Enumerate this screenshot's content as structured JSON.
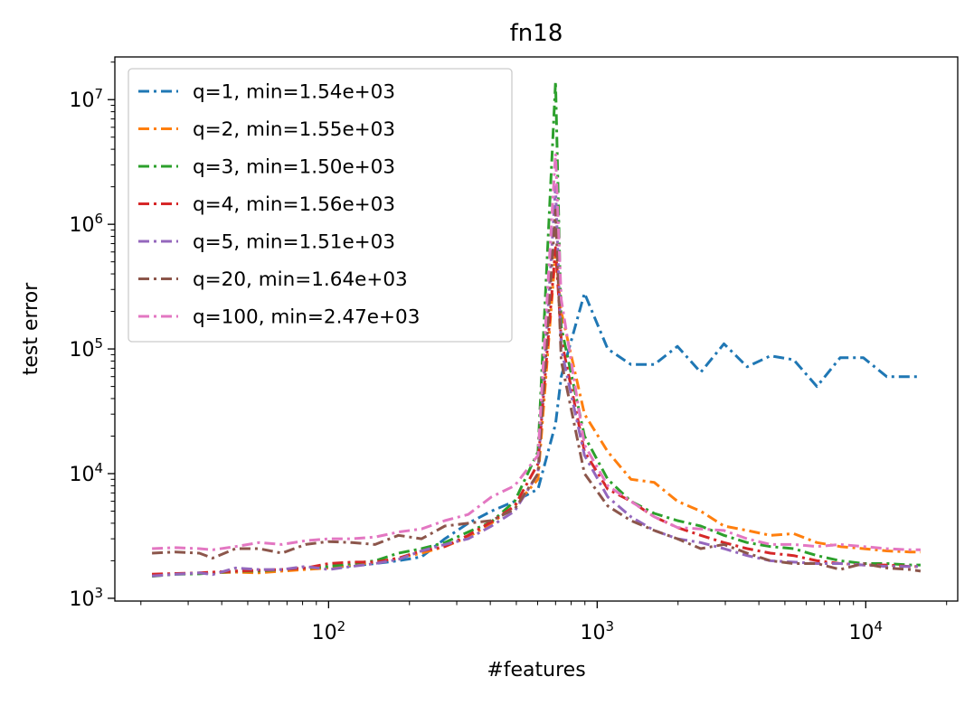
{
  "chart_data": {
    "type": "line",
    "title": "fn18",
    "xlabel": "#features",
    "ylabel": "test error",
    "xscale": "log",
    "yscale": "log",
    "xlim": [
      16,
      22000
    ],
    "ylim": [
      950,
      22000000
    ],
    "grid": false,
    "legend_position": "top-left",
    "x_ticks": [
      {
        "value": 100,
        "base": "10",
        "exp": "2"
      },
      {
        "value": 1000,
        "base": "10",
        "exp": "3"
      },
      {
        "value": 10000,
        "base": "10",
        "exp": "4"
      }
    ],
    "y_ticks": [
      {
        "value": 1000,
        "base": "10",
        "exp": "3"
      },
      {
        "value": 10000,
        "base": "10",
        "exp": "4"
      },
      {
        "value": 100000,
        "base": "10",
        "exp": "5"
      },
      {
        "value": 1000000,
        "base": "10",
        "exp": "6"
      },
      {
        "value": 10000000,
        "base": "10",
        "exp": "7"
      }
    ],
    "x": [
      22,
      27,
      33,
      37,
      45,
      55,
      67,
      82,
      100,
      122,
      149,
      182,
      222,
      271,
      331,
      404,
      493,
      602,
      700,
      735,
      897,
      1095,
      1336,
      1631,
      1990,
      2429,
      2965,
      3619,
      4417,
      5391,
      6580,
      8032,
      9803,
      11966,
      14605,
      16000
    ],
    "series": [
      {
        "name": "q=1, min=1.54e+03",
        "color": "#1f77b4",
        "values": [
          1540,
          1560,
          1580,
          1600,
          1620,
          1650,
          1680,
          1720,
          1760,
          1820,
          1900,
          2000,
          2150,
          3000,
          4000,
          5000,
          6000,
          7500,
          25000,
          60000,
          280000,
          100000,
          75000,
          75000,
          105000,
          65000,
          110000,
          72000,
          88000,
          82000,
          50000,
          85000,
          85000,
          60000,
          60000,
          60000
        ]
      },
      {
        "name": "q=2, min=1.55e+03",
        "color": "#ff7f0e",
        "values": [
          1550,
          1570,
          1580,
          1600,
          1620,
          1600,
          1650,
          1700,
          1750,
          1850,
          1950,
          2100,
          2300,
          2600,
          3100,
          4000,
          5500,
          9000,
          600000,
          200000,
          30000,
          15000,
          9000,
          8500,
          6000,
          5000,
          3800,
          3500,
          3200,
          3300,
          2800,
          2600,
          2500,
          2400,
          2350,
          2350
        ]
      },
      {
        "name": "q=3, min=1.50e+03",
        "color": "#2ca02c",
        "values": [
          1500,
          1560,
          1570,
          1600,
          1650,
          1650,
          1700,
          1750,
          1800,
          1900,
          2000,
          2300,
          2500,
          2800,
          3400,
          4100,
          6000,
          15000,
          14000000,
          150000,
          20000,
          9000,
          6000,
          4800,
          4200,
          3800,
          3200,
          2800,
          2600,
          2500,
          2200,
          2000,
          1900,
          1900,
          1850,
          1850
        ]
      },
      {
        "name": "q=4, min=1.56e+03",
        "color": "#d62728",
        "values": [
          1560,
          1580,
          1600,
          1620,
          1650,
          1680,
          1700,
          1750,
          1900,
          1950,
          1950,
          2100,
          2400,
          2600,
          3200,
          4100,
          5500,
          12000,
          650000,
          120000,
          15000,
          7500,
          6000,
          4500,
          3700,
          3200,
          2800,
          2500,
          2300,
          2200,
          2000,
          1900,
          1850,
          1850,
          1800,
          1800
        ]
      },
      {
        "name": "q=5, min=1.51e+03",
        "color": "#9467bd",
        "values": [
          1510,
          1560,
          1600,
          1550,
          1750,
          1700,
          1700,
          1800,
          1700,
          1800,
          1900,
          2050,
          2400,
          2700,
          3000,
          3800,
          5000,
          10000,
          2000000,
          100000,
          14000,
          6500,
          4500,
          3500,
          3000,
          2800,
          2500,
          2200,
          2000,
          1950,
          1900,
          1900,
          1850,
          1800,
          1800,
          1800
        ]
      },
      {
        "name": "q=20, min=1.64e+03",
        "color": "#8c564b",
        "values": [
          2300,
          2350,
          2300,
          2100,
          2500,
          2500,
          2300,
          2700,
          2850,
          2800,
          2700,
          3200,
          3000,
          3800,
          4000,
          4200,
          5200,
          10000,
          1300000,
          80000,
          10000,
          5500,
          4200,
          3500,
          3000,
          2500,
          2700,
          2300,
          2000,
          1900,
          1900,
          1700,
          1900,
          1750,
          1700,
          1650
        ]
      },
      {
        "name": "q=100, min=2.47e+03",
        "color": "#e377c2",
        "values": [
          2500,
          2550,
          2500,
          2450,
          2600,
          2800,
          2700,
          2900,
          3000,
          3000,
          3100,
          3400,
          3600,
          4200,
          4700,
          6500,
          8000,
          14000,
          3700000,
          250000,
          17000,
          8000,
          6000,
          4500,
          3700,
          3600,
          3500,
          3000,
          2700,
          2700,
          2600,
          2700,
          2600,
          2500,
          2450,
          2450
        ]
      }
    ]
  }
}
